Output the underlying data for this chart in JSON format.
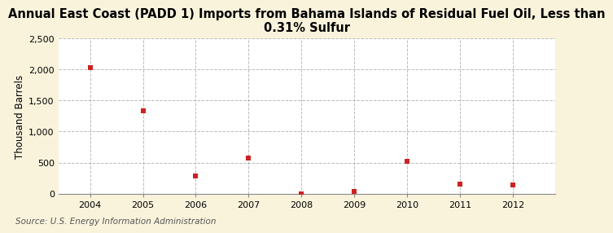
{
  "title": "Annual East Coast (PADD 1) Imports from Bahama Islands of Residual Fuel Oil, Less than\n0.31% Sulfur",
  "ylabel": "Thousand Barrels",
  "source": "Source: U.S. Energy Information Administration",
  "years": [
    2004,
    2005,
    2006,
    2007,
    2008,
    2009,
    2010,
    2011,
    2012
  ],
  "values": [
    2023,
    1332,
    288,
    578,
    0,
    30,
    519,
    155,
    138
  ],
  "marker_color": "#cc2222",
  "outer_bg": "#faf3dc",
  "plot_bg": "#ffffff",
  "grid_color": "#aaaaaa",
  "spine_color": "#888888",
  "text_color": "#555555",
  "ylim": [
    0,
    2500
  ],
  "yticks": [
    0,
    500,
    1000,
    1500,
    2000,
    2500
  ],
  "xlim": [
    2003.4,
    2012.8
  ],
  "xticks": [
    2004,
    2005,
    2006,
    2007,
    2008,
    2009,
    2010,
    2011,
    2012
  ],
  "title_fontsize": 10.5,
  "label_fontsize": 8.5,
  "tick_fontsize": 8,
  "source_fontsize": 7.5
}
